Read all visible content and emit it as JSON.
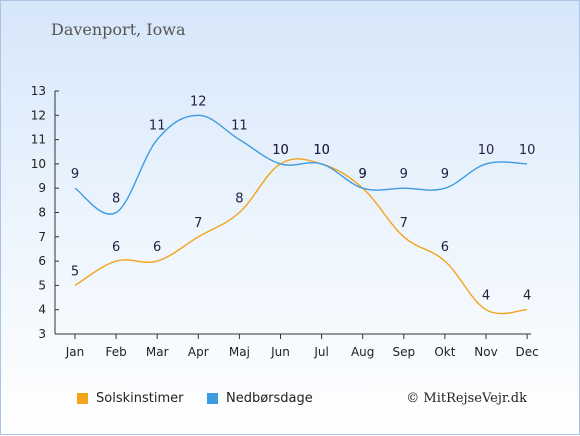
{
  "title": "Davenport, Iowa",
  "copyright": "© MitRejseVejr.dk",
  "colors": {
    "sunshine": "#f5a31a",
    "rain": "#3d9be0",
    "axis": "#333333",
    "label": "#222244"
  },
  "chart_data": {
    "type": "line",
    "categories": [
      "Jan",
      "Feb",
      "Mar",
      "Apr",
      "Maj",
      "Jun",
      "Jul",
      "Aug",
      "Sep",
      "Okt",
      "Nov",
      "Dec"
    ],
    "ylim": [
      3,
      13
    ],
    "yticks": [
      3,
      4,
      5,
      6,
      7,
      8,
      9,
      10,
      11,
      12,
      13
    ],
    "grid": false,
    "legend_position": "bottom",
    "series": [
      {
        "name": "Solskinstimer",
        "color": "#f5a31a",
        "values": [
          5,
          6,
          6,
          7,
          8,
          10,
          10,
          9,
          7,
          6,
          4,
          4
        ]
      },
      {
        "name": "Nedbørsdage",
        "color": "#3d9be0",
        "values": [
          9,
          8,
          11,
          12,
          11,
          10,
          10,
          9,
          9,
          9,
          10,
          10
        ]
      }
    ]
  }
}
